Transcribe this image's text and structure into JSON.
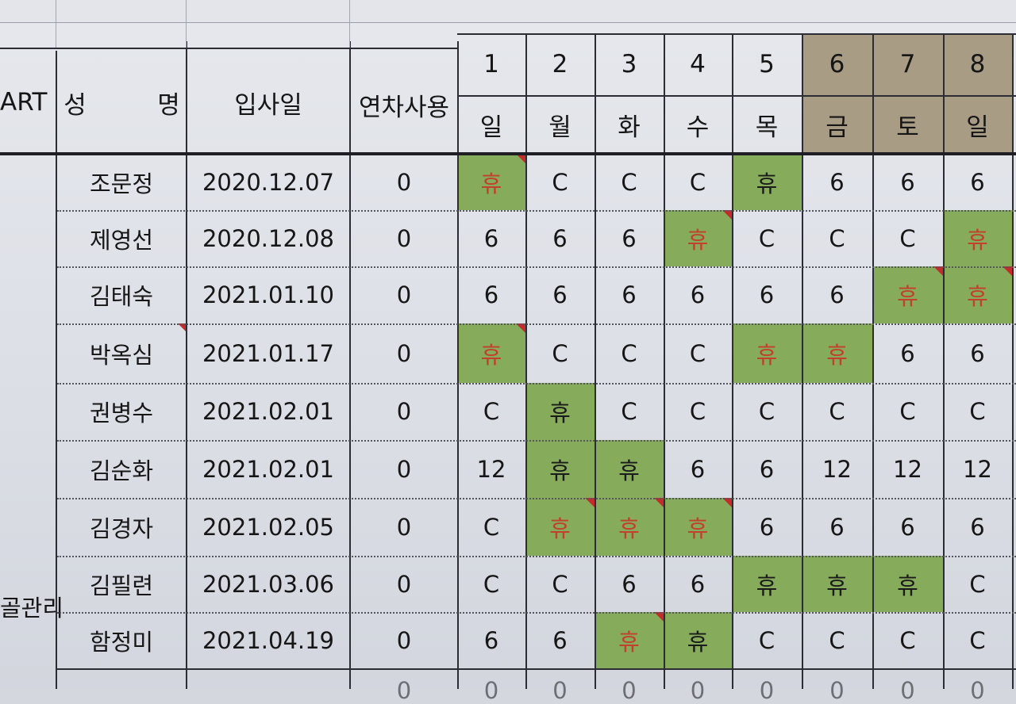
{
  "header": {
    "part": "ART",
    "name_left": "성",
    "name_right": "명",
    "join_date": "입사일",
    "leave_used": "연차사용",
    "days": [
      "1",
      "2",
      "3",
      "4",
      "5",
      "6",
      "7",
      "8"
    ],
    "weekdays": [
      "일",
      "월",
      "화",
      "수",
      "목",
      "금",
      "토",
      "일"
    ]
  },
  "dept_label": "골관리",
  "rows": [
    {
      "name": "조문정",
      "join": "2020.12.07",
      "leave": "0",
      "shifts": [
        "휴",
        "C",
        "C",
        "C",
        "휴",
        "6",
        "6",
        "6"
      ]
    },
    {
      "name": "제영선",
      "join": "2020.12.08",
      "leave": "0",
      "shifts": [
        "6",
        "6",
        "6",
        "휴",
        "C",
        "C",
        "C",
        "휴"
      ]
    },
    {
      "name": "김태숙",
      "join": "2021.01.10",
      "leave": "0",
      "shifts": [
        "6",
        "6",
        "6",
        "6",
        "6",
        "6",
        "휴",
        "휴"
      ]
    },
    {
      "name": "박옥심",
      "join": "2021.01.17",
      "leave": "0",
      "shifts": [
        "휴",
        "C",
        "C",
        "C",
        "휴",
        "휴",
        "6",
        "6"
      ]
    },
    {
      "name": "권병수",
      "join": "2021.02.01",
      "leave": "0",
      "shifts": [
        "C",
        "휴",
        "C",
        "C",
        "C",
        "C",
        "C",
        "C"
      ]
    },
    {
      "name": "김순화",
      "join": "2021.02.01",
      "leave": "0",
      "shifts": [
        "12",
        "휴",
        "휴",
        "6",
        "6",
        "12",
        "12",
        "12"
      ]
    },
    {
      "name": "김경자",
      "join": "2021.02.05",
      "leave": "0",
      "shifts": [
        "C",
        "휴",
        "휴",
        "휴",
        "6",
        "6",
        "6",
        "6"
      ]
    },
    {
      "name": "김필련",
      "join": "2021.03.06",
      "leave": "0",
      "shifts": [
        "C",
        "C",
        "6",
        "6",
        "휴",
        "휴",
        "휴",
        "C"
      ]
    },
    {
      "name": "함정미",
      "join": "2021.04.19",
      "leave": "0",
      "shifts": [
        "6",
        "6",
        "휴",
        "휴",
        "C",
        "C",
        "C",
        "C"
      ]
    }
  ],
  "partial_row": {
    "values": [
      "0",
      "0",
      "0",
      "0",
      "0",
      "0",
      "0",
      "0",
      "0"
    ]
  },
  "colors": {
    "off_fill": "#86ab5a",
    "off_text_red": "#c2402e",
    "weekend_header": "#a99c84",
    "comment_marker": "#c42b2b"
  }
}
